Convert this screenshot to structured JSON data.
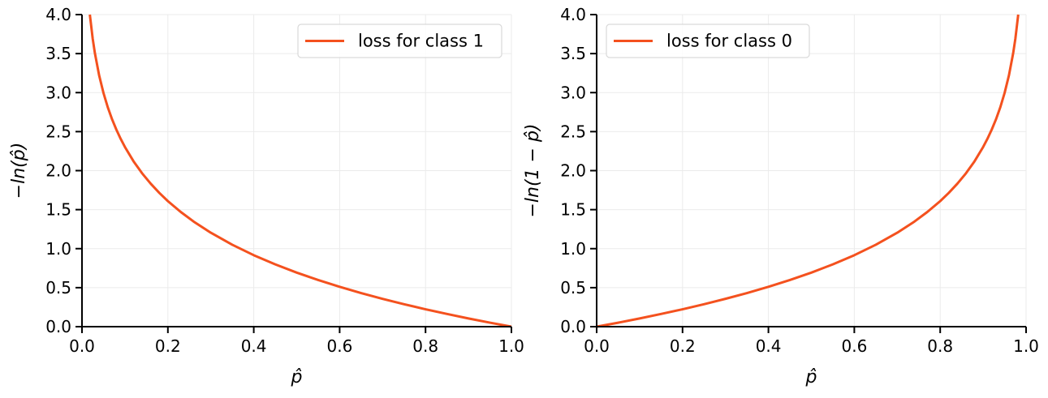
{
  "chart_data": [
    {
      "type": "line",
      "xlabel": "p̂",
      "ylabel": "−ln(p̂)",
      "xlim": [
        0.0,
        1.0
      ],
      "ylim": [
        0.0,
        4.0
      ],
      "xticks": [
        "0.0",
        "0.2",
        "0.4",
        "0.6",
        "0.8",
        "1.0"
      ],
      "yticks": [
        "0.0",
        "0.5",
        "1.0",
        "1.5",
        "2.0",
        "2.5",
        "3.0",
        "3.5",
        "4.0"
      ],
      "grid": true,
      "legend_position": "top-right",
      "series": [
        {
          "name": "loss for class 1",
          "color": "#f4511e",
          "x": [
            0.0183,
            0.025,
            0.03,
            0.04,
            0.05,
            0.06,
            0.07,
            0.08,
            0.09,
            0.1,
            0.12,
            0.14,
            0.16,
            0.18,
            0.2,
            0.23,
            0.26,
            0.3,
            0.35,
            0.4,
            0.45,
            0.5,
            0.55,
            0.6,
            0.65,
            0.7,
            0.75,
            0.8,
            0.85,
            0.9,
            0.95,
            1.0
          ],
          "y": [
            4.0,
            3.689,
            3.507,
            3.219,
            2.996,
            2.813,
            2.659,
            2.526,
            2.408,
            2.303,
            2.12,
            1.966,
            1.833,
            1.715,
            1.609,
            1.47,
            1.347,
            1.204,
            1.05,
            0.916,
            0.799,
            0.693,
            0.598,
            0.511,
            0.431,
            0.357,
            0.288,
            0.223,
            0.163,
            0.105,
            0.051,
            0.0
          ]
        }
      ]
    },
    {
      "type": "line",
      "xlabel": "p̂",
      "ylabel": "−ln(1 − p̂)",
      "xlim": [
        0.0,
        1.0
      ],
      "ylim": [
        0.0,
        4.0
      ],
      "xticks": [
        "0.0",
        "0.2",
        "0.4",
        "0.6",
        "0.8",
        "1.0"
      ],
      "yticks": [
        "0.0",
        "0.5",
        "1.0",
        "1.5",
        "2.0",
        "2.5",
        "3.0",
        "3.5",
        "4.0"
      ],
      "grid": true,
      "legend_position": "top-left",
      "series": [
        {
          "name": "loss for class 0",
          "color": "#f4511e",
          "x": [
            0.0,
            0.05,
            0.1,
            0.15,
            0.2,
            0.25,
            0.3,
            0.35,
            0.4,
            0.45,
            0.5,
            0.55,
            0.6,
            0.65,
            0.7,
            0.74,
            0.77,
            0.8,
            0.82,
            0.84,
            0.86,
            0.88,
            0.9,
            0.91,
            0.92,
            0.93,
            0.94,
            0.95,
            0.96,
            0.97,
            0.975,
            0.9817
          ],
          "y": [
            0.0,
            0.051,
            0.105,
            0.163,
            0.223,
            0.288,
            0.357,
            0.431,
            0.511,
            0.598,
            0.693,
            0.799,
            0.916,
            1.05,
            1.204,
            1.347,
            1.47,
            1.609,
            1.715,
            1.833,
            1.966,
            2.12,
            2.303,
            2.408,
            2.526,
            2.659,
            2.813,
            2.996,
            3.219,
            3.507,
            3.689,
            4.0
          ]
        }
      ]
    }
  ]
}
